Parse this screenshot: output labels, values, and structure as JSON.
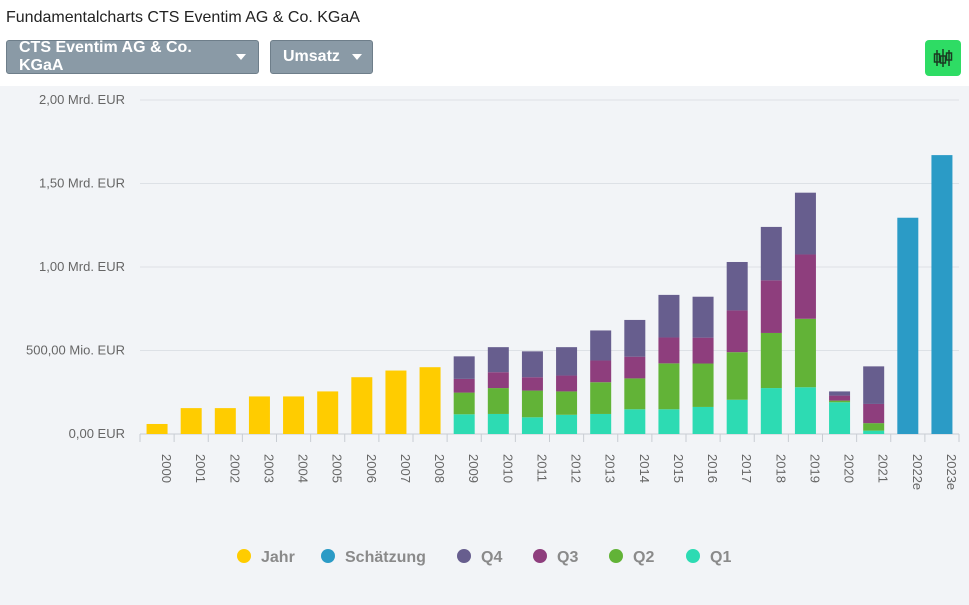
{
  "page": {
    "title": "Fundamentalcharts CTS Eventim AG & Co. KGaA"
  },
  "controls": {
    "company": "CTS Eventim AG & Co. KGaA",
    "metric": "Umsatz",
    "tool_icon": "candlestick-chart-icon"
  },
  "colors": {
    "Jahr": "#ffcc00",
    "Schätzung": "#2b9bc6",
    "Q4": "#675e8e",
    "Q3": "#8e3e7d",
    "Q2": "#62b337",
    "Q1": "#2ddbb3",
    "background": "#f2f4f7",
    "grid": "#dde1e6",
    "button": "#8a9aa6",
    "tool_button": "#2edc64"
  },
  "chart_data": {
    "type": "bar",
    "stacked": true,
    "ylim": [
      0,
      2000
    ],
    "unit": "Mio. EUR",
    "yticks": [
      {
        "value": 0,
        "label": "0,00 EUR"
      },
      {
        "value": 500,
        "label": "500,00 Mio. EUR"
      },
      {
        "value": 1000,
        "label": "1,00 Mrd. EUR"
      },
      {
        "value": 1500,
        "label": "1,50 Mrd. EUR"
      },
      {
        "value": 2000,
        "label": "2,00 Mrd. EUR"
      }
    ],
    "categories": [
      "2000",
      "2001",
      "2002",
      "2003",
      "2004",
      "2005",
      "2006",
      "2007",
      "2008",
      "2009",
      "2010",
      "2011",
      "2012",
      "2013",
      "2014",
      "2015",
      "2016",
      "2017",
      "2018",
      "2019",
      "2020",
      "2021",
      "2022e",
      "2023e"
    ],
    "series": [
      {
        "name": "Jahr",
        "values": [
          60,
          155,
          155,
          225,
          225,
          255,
          340,
          380,
          400,
          null,
          null,
          null,
          null,
          null,
          null,
          null,
          null,
          null,
          null,
          null,
          null,
          null,
          null,
          null
        ]
      },
      {
        "name": "Schätzung",
        "values": [
          null,
          null,
          null,
          null,
          null,
          null,
          null,
          null,
          null,
          null,
          null,
          null,
          null,
          null,
          null,
          null,
          null,
          null,
          null,
          null,
          null,
          null,
          1295,
          1670
        ]
      },
      {
        "name": "Q1",
        "values": [
          null,
          null,
          null,
          null,
          null,
          null,
          null,
          null,
          null,
          118,
          120,
          100,
          115,
          120,
          148,
          148,
          162,
          205,
          275,
          280,
          190,
          20,
          null,
          null
        ]
      },
      {
        "name": "Q2",
        "values": [
          null,
          null,
          null,
          null,
          null,
          null,
          null,
          null,
          null,
          130,
          155,
          160,
          140,
          190,
          185,
          275,
          260,
          285,
          330,
          410,
          10,
          45,
          null,
          null
        ]
      },
      {
        "name": "Q3",
        "values": [
          null,
          null,
          null,
          null,
          null,
          null,
          null,
          null,
          null,
          82,
          95,
          80,
          95,
          130,
          130,
          155,
          155,
          250,
          315,
          385,
          30,
          115,
          null,
          null
        ]
      },
      {
        "name": "Q4",
        "values": [
          null,
          null,
          null,
          null,
          null,
          null,
          null,
          null,
          null,
          135,
          150,
          155,
          170,
          180,
          220,
          255,
          245,
          290,
          320,
          370,
          25,
          225,
          null,
          null
        ]
      }
    ],
    "legend": [
      "Jahr",
      "Schätzung",
      "Q4",
      "Q3",
      "Q2",
      "Q1"
    ],
    "legend_position": "bottom-center",
    "grid": true
  }
}
